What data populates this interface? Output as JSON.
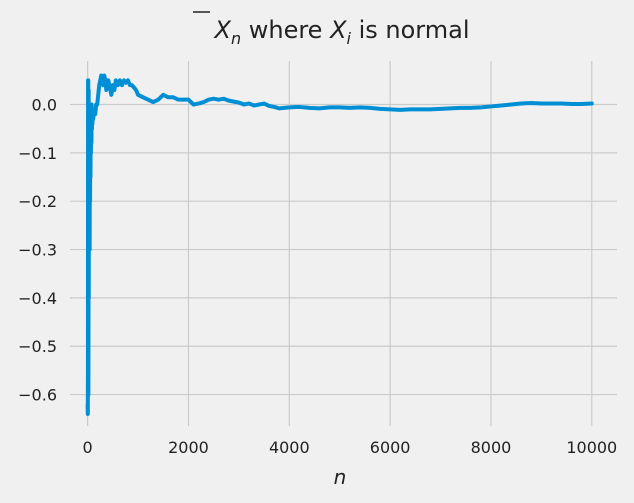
{
  "chart_data": {
    "type": "line",
    "title_parts": {
      "xbar": "X",
      "xbar_sub": "n",
      "middle": " where ",
      "xi": "X",
      "xi_sub": "i",
      "end": " is normal"
    },
    "xlabel": "n",
    "ylabel": "",
    "xlim": [
      -350,
      10500
    ],
    "ylim": [
      -0.665,
      0.09
    ],
    "x_ticks": [
      0,
      2000,
      4000,
      6000,
      8000,
      10000
    ],
    "y_ticks": [
      0.0,
      -0.1,
      -0.2,
      -0.3,
      -0.4,
      -0.5,
      -0.6
    ],
    "x_tick_labels": [
      "0",
      "2000",
      "4000",
      "6000",
      "8000",
      "10000"
    ],
    "y_tick_labels": [
      "0.0",
      "−0.1",
      "−0.2",
      "−0.3",
      "−0.4",
      "−0.5",
      "−0.6"
    ],
    "grid": true,
    "colors": {
      "line": "#008fd5",
      "grid": "#cbcbcb",
      "background": "#f0f0f0"
    },
    "series": [
      {
        "x": [
          0,
          3,
          6,
          8,
          10,
          12,
          15,
          18,
          20,
          22,
          25,
          28,
          30,
          33,
          36,
          40,
          44,
          48,
          52,
          56,
          60,
          65,
          70,
          75,
          80,
          85,
          90,
          95,
          100,
          110,
          120,
          130,
          140,
          150,
          170,
          190,
          210,
          230,
          250,
          270,
          290,
          310,
          330,
          350,
          370,
          390,
          410,
          430,
          450,
          470,
          500,
          530,
          560,
          600,
          640,
          680,
          720,
          760,
          800,
          840,
          880,
          920,
          960,
          1000,
          1100,
          1200,
          1300,
          1400,
          1500,
          1600,
          1700,
          1800,
          1900,
          2000,
          2100,
          2200,
          2300,
          2400,
          2500,
          2600,
          2700,
          2800,
          2900,
          3000,
          3100,
          3200,
          3300,
          3400,
          3500,
          3600,
          3700,
          3800,
          4000,
          4200,
          4400,
          4600,
          4800,
          5000,
          5200,
          5400,
          5600,
          5800,
          6000,
          6200,
          6400,
          6600,
          6800,
          7000,
          7200,
          7400,
          7600,
          7800,
          8000,
          8200,
          8400,
          8600,
          8800,
          9000,
          9200,
          9400,
          9600,
          9800,
          10000
        ],
        "y": [
          -0.62,
          -0.64,
          -0.55,
          0.05,
          -0.3,
          0.05,
          -0.6,
          -0.35,
          0.03,
          -0.4,
          -0.1,
          -0.3,
          0.0,
          -0.25,
          -0.05,
          -0.3,
          -0.02,
          -0.2,
          -0.05,
          -0.15,
          -0.03,
          -0.1,
          -0.02,
          -0.08,
          0.0,
          -0.05,
          -0.02,
          -0.04,
          -0.02,
          -0.03,
          -0.02,
          -0.01,
          -0.01,
          -0.02,
          0.0,
          0.0,
          0.02,
          0.04,
          0.05,
          0.06,
          0.05,
          0.04,
          0.06,
          0.05,
          0.03,
          0.04,
          0.05,
          0.04,
          0.03,
          0.02,
          0.04,
          0.03,
          0.05,
          0.04,
          0.05,
          0.04,
          0.05,
          0.045,
          0.05,
          0.04,
          0.04,
          0.035,
          0.03,
          0.02,
          0.015,
          0.01,
          0.005,
          0.01,
          0.02,
          0.015,
          0.015,
          0.01,
          0.01,
          0.01,
          0.0,
          0.002,
          0.005,
          0.01,
          0.012,
          0.01,
          0.012,
          0.008,
          0.006,
          0.004,
          0.0,
          0.002,
          -0.002,
          0.0,
          0.002,
          -0.003,
          -0.005,
          -0.008,
          -0.006,
          -0.005,
          -0.007,
          -0.008,
          -0.006,
          -0.006,
          -0.007,
          -0.006,
          -0.007,
          -0.009,
          -0.01,
          -0.011,
          -0.01,
          -0.01,
          -0.01,
          -0.009,
          -0.008,
          -0.007,
          -0.007,
          -0.006,
          -0.004,
          -0.002,
          0.0,
          0.002,
          0.003,
          0.002,
          0.002,
          0.002,
          0.001,
          0.001,
          0.002
        ]
      }
    ]
  }
}
